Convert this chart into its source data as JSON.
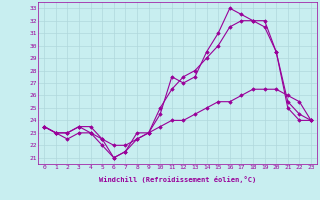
{
  "xlabel": "Windchill (Refroidissement éolien,°C)",
  "background_color": "#c8eef0",
  "grid_color": "#b0d8dc",
  "line_color": "#990099",
  "xlim": [
    -0.5,
    23.5
  ],
  "ylim": [
    20.5,
    33.5
  ],
  "yticks": [
    21,
    22,
    23,
    24,
    25,
    26,
    27,
    28,
    29,
    30,
    31,
    32,
    33
  ],
  "xticks": [
    0,
    1,
    2,
    3,
    4,
    5,
    6,
    7,
    8,
    9,
    10,
    11,
    12,
    13,
    14,
    15,
    16,
    17,
    18,
    19,
    20,
    21,
    22,
    23
  ],
  "line1_x": [
    0,
    1,
    2,
    3,
    4,
    5,
    6,
    7,
    8,
    9,
    10,
    11,
    12,
    13,
    14,
    15,
    16,
    17,
    18,
    19,
    20,
    21,
    22,
    23
  ],
  "line1_y": [
    23.5,
    23.0,
    23.0,
    23.5,
    23.5,
    22.5,
    21.0,
    21.5,
    22.5,
    23.0,
    24.5,
    27.5,
    27.0,
    27.5,
    29.5,
    31.0,
    33.0,
    32.5,
    32.0,
    32.0,
    29.5,
    25.0,
    24.0,
    24.0
  ],
  "line2_x": [
    0,
    1,
    2,
    3,
    4,
    5,
    6,
    7,
    8,
    9,
    10,
    11,
    12,
    13,
    14,
    15,
    16,
    17,
    18,
    19,
    20,
    21,
    22,
    23
  ],
  "line2_y": [
    23.5,
    23.0,
    22.5,
    23.0,
    23.0,
    22.0,
    21.0,
    21.5,
    23.0,
    23.0,
    25.0,
    26.5,
    27.5,
    28.0,
    29.0,
    30.0,
    31.5,
    32.0,
    32.0,
    31.5,
    29.5,
    25.5,
    24.5,
    24.0
  ],
  "line3_x": [
    0,
    1,
    2,
    3,
    4,
    5,
    6,
    7,
    8,
    9,
    10,
    11,
    12,
    13,
    14,
    15,
    16,
    17,
    18,
    19,
    20,
    21,
    22,
    23
  ],
  "line3_y": [
    23.5,
    23.0,
    23.0,
    23.5,
    23.0,
    22.5,
    22.0,
    22.0,
    22.5,
    23.0,
    23.5,
    24.0,
    24.0,
    24.5,
    25.0,
    25.5,
    25.5,
    26.0,
    26.5,
    26.5,
    26.5,
    26.0,
    25.5,
    24.0
  ],
  "marker": "D",
  "markersize": 1.8,
  "linewidth": 0.8,
  "tick_fontsize": 4.5,
  "xlabel_fontsize": 5.0
}
